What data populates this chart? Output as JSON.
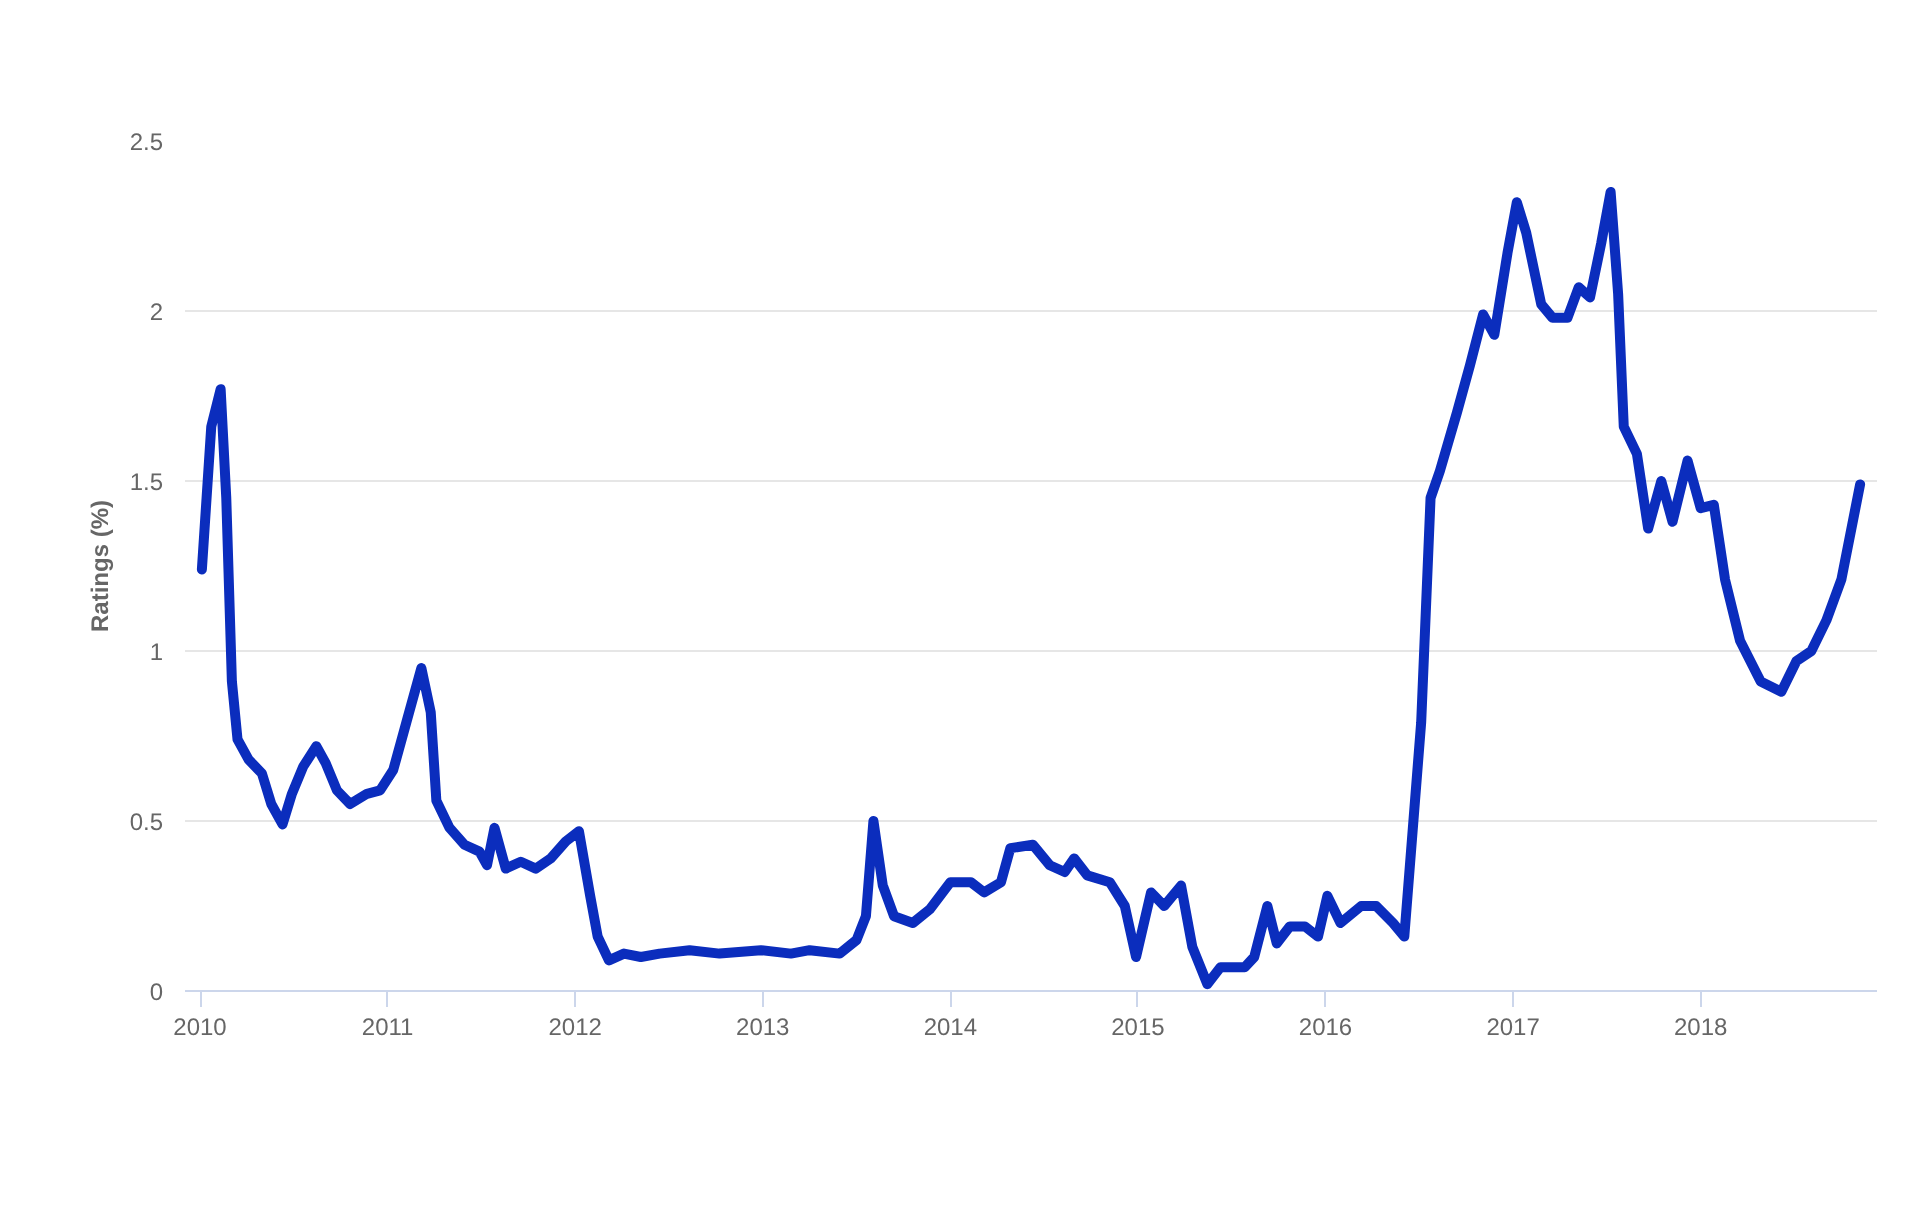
{
  "chart_data": {
    "type": "line",
    "ylabel": "Ratings (%)",
    "xlim": [
      2009.92,
      2018.94
    ],
    "xticks": [
      2010,
      2011,
      2012,
      2013,
      2014,
      2015,
      2016,
      2017,
      2018
    ],
    "ylim": [
      0,
      2.5
    ],
    "yticks": [
      0,
      0.5,
      1,
      1.5,
      2,
      2.5
    ],
    "grid": "y",
    "marker": "none",
    "line_style": "solid",
    "series": [
      {
        "color": "#0b2dbd",
        "x": [
          2010.01,
          2010.06,
          2010.11,
          2010.14,
          2010.17,
          2010.2,
          2010.26,
          2010.33,
          2010.38,
          2010.44,
          2010.49,
          2010.55,
          2010.62,
          2010.67,
          2010.73,
          2010.8,
          2010.89,
          2010.96,
          2011.03,
          2011.1,
          2011.18,
          2011.23,
          2011.26,
          2011.33,
          2011.41,
          2011.49,
          2011.53,
          2011.57,
          2011.63,
          2011.71,
          2011.79,
          2011.87,
          2011.95,
          2012.02,
          2012.08,
          2012.12,
          2012.18,
          2012.26,
          2012.35,
          2012.45,
          2012.61,
          2012.77,
          2012.99,
          2013.15,
          2013.25,
          2013.41,
          2013.5,
          2013.55,
          2013.59,
          2013.64,
          2013.7,
          2013.8,
          2013.89,
          2014.0,
          2014.11,
          2014.18,
          2014.27,
          2014.32,
          2014.44,
          2014.53,
          2014.61,
          2014.66,
          2014.73,
          2014.85,
          2014.93,
          2014.99,
          2015.07,
          2015.14,
          2015.23,
          2015.29,
          2015.37,
          2015.44,
          2015.57,
          2015.62,
          2015.69,
          2015.74,
          2015.81,
          2015.89,
          2015.96,
          2016.01,
          2016.08,
          2016.19,
          2016.27,
          2016.36,
          2016.42,
          2016.51,
          2016.56,
          2016.61,
          2016.7,
          2016.77,
          2016.84,
          2016.9,
          2016.97,
          2017.02,
          2017.07,
          2017.15,
          2017.21,
          2017.29,
          2017.35,
          2017.41,
          2017.47,
          2017.52,
          2017.56,
          2017.59,
          2017.66,
          2017.72,
          2017.79,
          2017.85,
          2017.93,
          2018.0,
          2018.07,
          2018.13,
          2018.21,
          2018.32,
          2018.43,
          2018.51,
          2018.59,
          2018.67,
          2018.75,
          2018.85
        ],
        "values": [
          1.24,
          1.66,
          1.77,
          1.45,
          0.91,
          0.74,
          0.68,
          0.64,
          0.55,
          0.49,
          0.58,
          0.66,
          0.72,
          0.67,
          0.59,
          0.55,
          0.58,
          0.59,
          0.65,
          0.79,
          0.95,
          0.82,
          0.56,
          0.48,
          0.43,
          0.41,
          0.37,
          0.48,
          0.36,
          0.38,
          0.36,
          0.39,
          0.44,
          0.47,
          0.28,
          0.16,
          0.09,
          0.11,
          0.1,
          0.11,
          0.12,
          0.11,
          0.12,
          0.11,
          0.12,
          0.11,
          0.15,
          0.22,
          0.5,
          0.31,
          0.22,
          0.2,
          0.24,
          0.32,
          0.32,
          0.29,
          0.32,
          0.42,
          0.43,
          0.37,
          0.35,
          0.39,
          0.34,
          0.32,
          0.25,
          0.1,
          0.29,
          0.25,
          0.31,
          0.13,
          0.02,
          0.07,
          0.07,
          0.1,
          0.25,
          0.14,
          0.19,
          0.19,
          0.16,
          0.28,
          0.2,
          0.25,
          0.25,
          0.2,
          0.16,
          0.79,
          1.45,
          1.53,
          1.7,
          1.84,
          1.99,
          1.93,
          2.17,
          2.32,
          2.23,
          2.02,
          1.98,
          1.98,
          2.07,
          2.04,
          2.2,
          2.35,
          2.05,
          1.66,
          1.58,
          1.36,
          1.5,
          1.38,
          1.56,
          1.42,
          1.43,
          1.21,
          1.03,
          0.91,
          0.88,
          0.97,
          1.0,
          1.09,
          1.21,
          1.49
        ]
      }
    ]
  }
}
